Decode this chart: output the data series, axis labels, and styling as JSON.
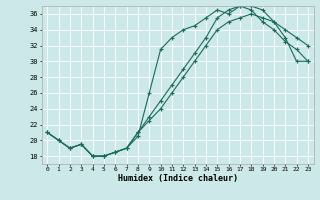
{
  "xlabel": "Humidex (Indice chaleur)",
  "bg_color": "#cce8e8",
  "line_color": "#1a6b5a",
  "grid_color": "#ffffff",
  "ylim": [
    17,
    37
  ],
  "xlim": [
    -0.5,
    23.5
  ],
  "yticks": [
    18,
    20,
    22,
    24,
    26,
    28,
    30,
    32,
    34,
    36
  ],
  "xticks": [
    0,
    1,
    2,
    3,
    4,
    5,
    6,
    7,
    8,
    9,
    10,
    11,
    12,
    13,
    14,
    15,
    16,
    17,
    18,
    19,
    20,
    21,
    22,
    23
  ],
  "line1_x": [
    0,
    1,
    2,
    3,
    4,
    5,
    6,
    7,
    8,
    9,
    10,
    11,
    12,
    13,
    14,
    15,
    16,
    17,
    18,
    19,
    20,
    21,
    22,
    23
  ],
  "line1_y": [
    21.0,
    20.0,
    19.0,
    19.5,
    18.0,
    18.0,
    18.5,
    19.0,
    20.5,
    26.0,
    31.5,
    33.0,
    34.0,
    34.5,
    35.5,
    36.5,
    36.0,
    37.0,
    36.5,
    35.0,
    34.0,
    32.5,
    31.5,
    30.0
  ],
  "line2_x": [
    0,
    1,
    2,
    3,
    4,
    5,
    6,
    7,
    8,
    9,
    10,
    11,
    12,
    13,
    14,
    15,
    16,
    17,
    18,
    19,
    20,
    21,
    22,
    23
  ],
  "line2_y": [
    21.0,
    20.0,
    19.0,
    19.5,
    18.0,
    18.0,
    18.5,
    19.0,
    21.0,
    22.5,
    24.0,
    26.0,
    28.0,
    30.0,
    32.0,
    34.0,
    35.0,
    35.5,
    36.0,
    35.5,
    35.0,
    33.0,
    30.0,
    30.0
  ],
  "line3_x": [
    0,
    1,
    2,
    3,
    4,
    5,
    6,
    7,
    8,
    9,
    10,
    11,
    12,
    13,
    14,
    15,
    16,
    17,
    18,
    19,
    20,
    21,
    22,
    23
  ],
  "line3_y": [
    21.0,
    20.0,
    19.0,
    19.5,
    18.0,
    18.0,
    18.5,
    19.0,
    21.0,
    23.0,
    25.0,
    27.0,
    29.0,
    31.0,
    33.0,
    35.5,
    36.5,
    37.0,
    37.0,
    36.5,
    35.0,
    34.0,
    33.0,
    32.0
  ]
}
